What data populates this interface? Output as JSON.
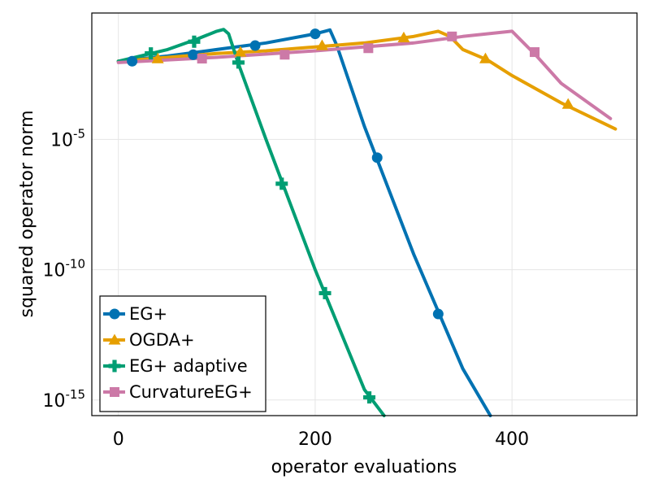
{
  "chart_data": {
    "type": "line",
    "title": "",
    "xlabel": "operator evaluations",
    "ylabel": "squared operator norm",
    "xlim": [
      -27,
      527
    ],
    "ylog10_lim": [
      -15.6,
      -0.15
    ],
    "xticks": [
      0,
      200,
      400
    ],
    "xtick_labels": [
      "0",
      "200",
      "400"
    ],
    "yticks": [
      -5,
      -10,
      -15
    ],
    "ytick_labels": [
      {
        "base": "10",
        "exp": "-5"
      },
      {
        "base": "10",
        "exp": "-10"
      },
      {
        "base": "10",
        "exp": "-15"
      }
    ],
    "grid": true,
    "legend_position": "bottom-left",
    "series": [
      {
        "name": "EG+",
        "color": "#0072B2",
        "marker": "circle",
        "log10_y": [
          [
            0,
            -2.0
          ],
          [
            50,
            -1.8
          ],
          [
            100,
            -1.55
          ],
          [
            150,
            -1.3
          ],
          [
            200,
            -0.95
          ],
          [
            210,
            -0.85
          ],
          [
            215,
            -0.8
          ],
          [
            222,
            -1.4
          ],
          [
            250,
            -4.5
          ],
          [
            300,
            -9.4
          ],
          [
            350,
            -13.8
          ],
          [
            378,
            -15.6
          ]
        ],
        "markers": [
          [
            14,
            -2.0
          ],
          [
            76,
            -1.75
          ],
          [
            139,
            -1.4
          ],
          [
            200,
            -0.95
          ],
          [
            263,
            -5.7
          ],
          [
            325,
            -11.7
          ]
        ]
      },
      {
        "name": "OGDA+",
        "color": "#E69F00",
        "marker": "triangle",
        "log10_y": [
          [
            0,
            -2.0
          ],
          [
            50,
            -1.85
          ],
          [
            100,
            -1.7
          ],
          [
            150,
            -1.6
          ],
          [
            200,
            -1.45
          ],
          [
            250,
            -1.3
          ],
          [
            300,
            -1.05
          ],
          [
            325,
            -0.85
          ],
          [
            337,
            -1.05
          ],
          [
            350,
            -1.55
          ],
          [
            375,
            -1.95
          ],
          [
            400,
            -2.55
          ],
          [
            450,
            -3.6
          ],
          [
            505,
            -4.6
          ]
        ],
        "markers": [
          [
            40,
            -1.9
          ],
          [
            124,
            -1.65
          ],
          [
            207,
            -1.4
          ],
          [
            290,
            -1.1
          ],
          [
            373,
            -1.9
          ],
          [
            457,
            -3.65
          ]
        ]
      },
      {
        "name": "EG+ adaptive",
        "color": "#009E73",
        "marker": "cross",
        "log10_y": [
          [
            0,
            -2.0
          ],
          [
            50,
            -1.55
          ],
          [
            80,
            -1.15
          ],
          [
            100,
            -0.85
          ],
          [
            107,
            -0.78
          ],
          [
            112,
            -0.95
          ],
          [
            122,
            -2.1
          ],
          [
            150,
            -5.0
          ],
          [
            200,
            -10.0
          ],
          [
            250,
            -14.6
          ],
          [
            270,
            -15.6
          ]
        ],
        "markers": [
          [
            33,
            -1.7
          ],
          [
            77,
            -1.25
          ],
          [
            122,
            -2.05
          ],
          [
            166,
            -6.7
          ],
          [
            210,
            -10.9
          ],
          [
            255,
            -14.9
          ]
        ]
      },
      {
        "name": "CurvatureEG+",
        "color": "#CC79A7",
        "marker": "square",
        "log10_y": [
          [
            0,
            -2.05
          ],
          [
            100,
            -1.85
          ],
          [
            200,
            -1.6
          ],
          [
            300,
            -1.3
          ],
          [
            350,
            -1.05
          ],
          [
            400,
            -0.85
          ],
          [
            425,
            -1.8
          ],
          [
            450,
            -2.85
          ],
          [
            500,
            -4.2
          ]
        ],
        "markers": [
          [
            85,
            -1.9
          ],
          [
            169,
            -1.75
          ],
          [
            254,
            -1.5
          ],
          [
            339,
            -1.05
          ],
          [
            423,
            -1.65
          ]
        ]
      }
    ]
  }
}
